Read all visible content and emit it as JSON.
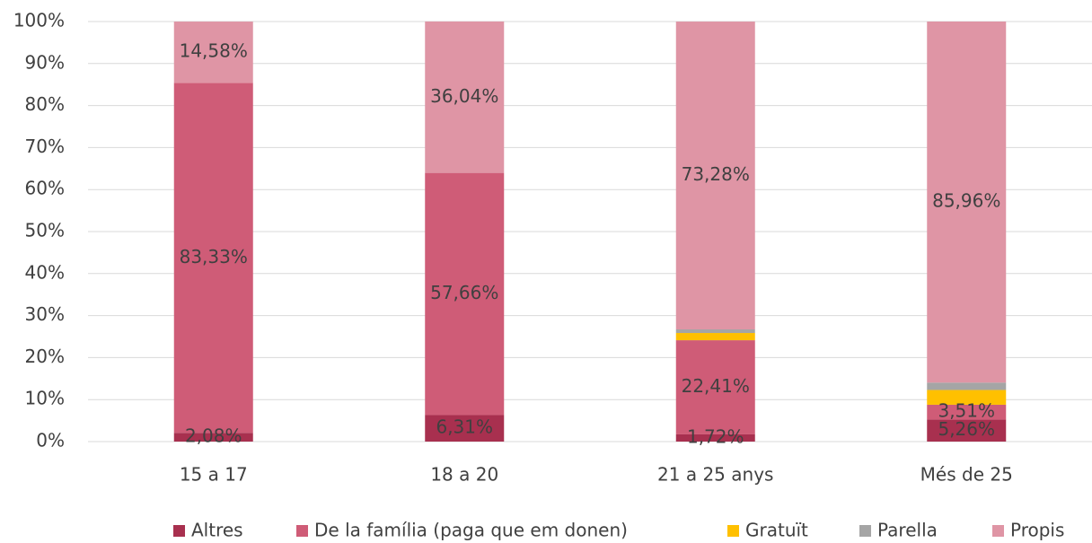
{
  "chart_data": {
    "type": "stacked_bar",
    "categories": [
      "15 a 17",
      "18 a 20",
      "21 a 25 anys",
      "Més de 25"
    ],
    "series": [
      {
        "name": "Altres",
        "color": "#a8304f",
        "values": [
          2.08,
          6.31,
          1.72,
          5.26
        ],
        "value_labels": [
          "2,08%",
          "6,31%",
          "1,72%",
          "5,26%"
        ]
      },
      {
        "name": "De la família (paga que em donen)",
        "color": "#cf5c77",
        "values": [
          83.33,
          57.66,
          22.41,
          3.51
        ],
        "value_labels": [
          "83,33%",
          "57,66%",
          "22,41%",
          "3,51%"
        ]
      },
      {
        "name": "Gratuït",
        "color": "#ffc000",
        "values": [
          0,
          0,
          1.72,
          3.51
        ]
      },
      {
        "name": "Parella",
        "color": "#a5a5a5",
        "values": [
          0,
          0,
          0.86,
          1.76
        ]
      },
      {
        "name": "Propis",
        "color": "#df95a5",
        "values": [
          14.58,
          36.04,
          73.28,
          85.96
        ],
        "value_labels": [
          "14,58%",
          "36,04%",
          "73,28%",
          "85,96%"
        ]
      }
    ],
    "ylim": [
      0,
      100
    ],
    "yticks": [
      {
        "value": 0,
        "label": "0%"
      },
      {
        "value": 10,
        "label": "10%"
      },
      {
        "value": 20,
        "label": "20%"
      },
      {
        "value": 30,
        "label": "30%"
      },
      {
        "value": 40,
        "label": "40%"
      },
      {
        "value": 50,
        "label": "50%"
      },
      {
        "value": 60,
        "label": "60%"
      },
      {
        "value": 70,
        "label": "70%"
      },
      {
        "value": 80,
        "label": "80%"
      },
      {
        "value": 90,
        "label": "90%"
      },
      {
        "value": 100,
        "label": "100%"
      }
    ],
    "grid": true,
    "legend": "bottom"
  }
}
